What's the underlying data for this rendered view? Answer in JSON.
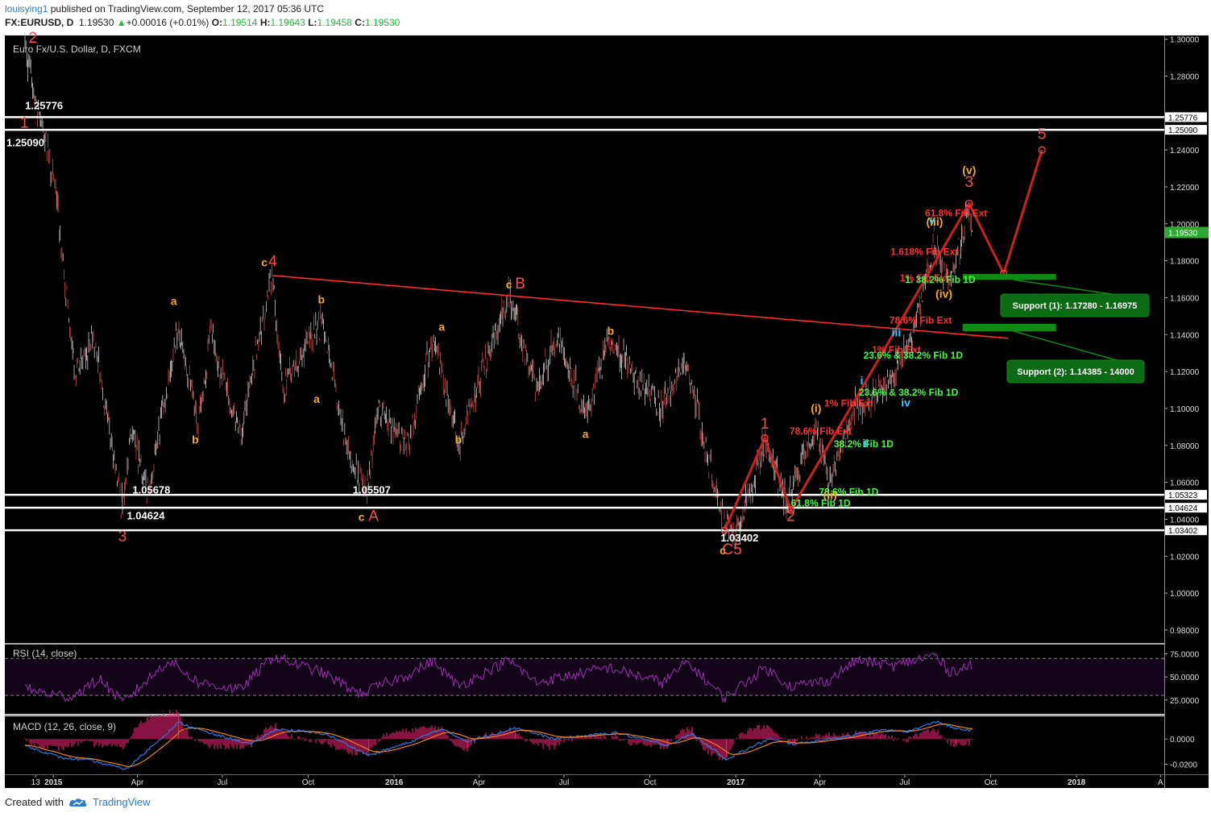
{
  "header": {
    "user": "louisying1",
    "published": "published on TradingView.com, September 12, 2017 05:36 UTC",
    "symbol": "FX:EURUSD, D",
    "last": "1.19530",
    "change": "+0.00016 (+0.01%)",
    "o_label": "O:",
    "o": "1.19514",
    "h_label": "H:",
    "h": "1.19643",
    "l_label": "L:",
    "l": "1.19458",
    "c_label": "C:",
    "c": "1.19530"
  },
  "footer": {
    "created": "Created with",
    "brand": "TradingView"
  },
  "colors": {
    "background": "#000000",
    "wave_red": "#ff4d4d",
    "wave_orange": "#f5a623",
    "fib_green": "#3dff3d",
    "cyan": "#33ccff",
    "rsi": "#9b30b0",
    "macd": "#2b7bdf",
    "signal": "#f08020"
  },
  "chart_data": {
    "type": "candlestick",
    "title": "Euro Fx/U.S. Dollar, D, FXCM",
    "x_ticks": [
      "13",
      "2015",
      "Apr",
      "Jul",
      "Oct",
      "2016",
      "Apr",
      "Jul",
      "Oct",
      "2017",
      "Apr",
      "Jul",
      "Oct",
      "2018",
      "A"
    ],
    "y_ticks": [
      "1.30000",
      "1.28000",
      "1.24000",
      "1.22000",
      "1.20000",
      "1.18000",
      "1.16000",
      "1.14000",
      "1.12000",
      "1.10000",
      "1.08000",
      "1.06000",
      "1.04000",
      "1.02000",
      "1.00000",
      "0.98000"
    ],
    "ylim": [
      0.973,
      1.302
    ],
    "last_price": "1.19530",
    "price_path": [
      {
        "t": "2014-12-01",
        "v": 1.3
      },
      {
        "t": "2014-12-12",
        "v": 1.268
      },
      {
        "t": "2014-12-18",
        "v": 1.258
      },
      {
        "t": "2015-01-05",
        "v": 1.212
      },
      {
        "t": "2015-01-23",
        "v": 1.12
      },
      {
        "t": "2015-02-15",
        "v": 1.135
      },
      {
        "t": "2015-03-16",
        "v": 1.046
      },
      {
        "t": "2015-03-25",
        "v": 1.09
      },
      {
        "t": "2015-04-13",
        "v": 1.056
      },
      {
        "t": "2015-05-15",
        "v": 1.145
      },
      {
        "t": "2015-06-05",
        "v": 1.09
      },
      {
        "t": "2015-06-18",
        "v": 1.14
      },
      {
        "t": "2015-07-20",
        "v": 1.085
      },
      {
        "t": "2015-08-24",
        "v": 1.172
      },
      {
        "t": "2015-09-03",
        "v": 1.11
      },
      {
        "t": "2015-10-15",
        "v": 1.148
      },
      {
        "t": "2015-11-15",
        "v": 1.07
      },
      {
        "t": "2015-12-03",
        "v": 1.055
      },
      {
        "t": "2015-12-15",
        "v": 1.1
      },
      {
        "t": "2016-01-15",
        "v": 1.08
      },
      {
        "t": "2016-02-11",
        "v": 1.138
      },
      {
        "t": "2016-03-10",
        "v": 1.082
      },
      {
        "t": "2016-05-03",
        "v": 1.162
      },
      {
        "t": "2016-06-01",
        "v": 1.11
      },
      {
        "t": "2016-06-24",
        "v": 1.14
      },
      {
        "t": "2016-07-25",
        "v": 1.095
      },
      {
        "t": "2016-08-18",
        "v": 1.136
      },
      {
        "t": "2016-10-15",
        "v": 1.1
      },
      {
        "t": "2016-11-08",
        "v": 1.127
      },
      {
        "t": "2016-12-20",
        "v": 1.036
      },
      {
        "t": "2017-01-03",
        "v": 1.034
      },
      {
        "t": "2017-02-01",
        "v": 1.082
      },
      {
        "t": "2017-02-24",
        "v": 1.05
      },
      {
        "t": "2017-03-27",
        "v": 1.09
      },
      {
        "t": "2017-04-10",
        "v": 1.06
      },
      {
        "t": "2017-05-10",
        "v": 1.1
      },
      {
        "t": "2017-06-15",
        "v": 1.115
      },
      {
        "t": "2017-07-10",
        "v": 1.14
      },
      {
        "t": "2017-08-02",
        "v": 1.19
      },
      {
        "t": "2017-08-17",
        "v": 1.165
      },
      {
        "t": "2017-09-08",
        "v": 1.209
      },
      {
        "t": "2017-09-12",
        "v": 1.195
      }
    ],
    "key_levels": [
      {
        "price": 1.25776,
        "label": "1.25776"
      },
      {
        "price": 1.2509,
        "label": "1.25090"
      },
      {
        "price": 1.05323,
        "label": "1.05323"
      },
      {
        "price": 1.04624,
        "label": "1.04624"
      },
      {
        "price": 1.03402,
        "label": "1.03402"
      }
    ],
    "trendline": [
      {
        "t": "2015-08-24",
        "v": 1.172
      },
      {
        "t": "2017-10-20",
        "v": 1.138
      }
    ],
    "projection": [
      {
        "t": "2016-12-20",
        "v": 1.034
      },
      {
        "t": "2017-02-01",
        "v": 1.084
      },
      {
        "t": "2017-03-01",
        "v": 1.045
      },
      {
        "t": "2017-09-08",
        "v": 1.211
      },
      {
        "t": "2017-10-15",
        "v": 1.173
      },
      {
        "t": "2017-11-25",
        "v": 1.24
      }
    ],
    "wave_labels": [
      {
        "t": "2014-12-10",
        "v": 1.298,
        "text": "2",
        "color": "red"
      },
      {
        "t": "2014-12-01",
        "v": 1.252,
        "text": "1",
        "color": "red"
      },
      {
        "t": "2015-03-16",
        "v": 1.028,
        "text": "3",
        "color": "red"
      },
      {
        "t": "2015-08-24",
        "v": 1.177,
        "text": "4",
        "color": "red"
      },
      {
        "t": "2015-08-15",
        "v": 1.177,
        "text": "c",
        "color": "orange"
      },
      {
        "t": "2015-12-10",
        "v": 1.039,
        "text": "A",
        "color": "red"
      },
      {
        "t": "2015-11-27",
        "v": 1.039,
        "text": "c",
        "color": "orange"
      },
      {
        "t": "2016-05-15",
        "v": 1.165,
        "text": "B",
        "color": "red"
      },
      {
        "t": "2016-05-03",
        "v": 1.165,
        "text": "c",
        "color": "orange"
      },
      {
        "t": "2016-12-28",
        "v": 1.021,
        "text": "C5",
        "color": "red"
      },
      {
        "t": "2016-12-18",
        "v": 1.021,
        "text": "c",
        "color": "orange"
      },
      {
        "t": "2017-02-01",
        "v": 1.089,
        "text": "1",
        "color": "red"
      },
      {
        "t": "2017-03-01",
        "v": 1.039,
        "text": "2",
        "color": "red"
      },
      {
        "t": "2017-09-08",
        "v": 1.22,
        "text": "3",
        "color": "red"
      },
      {
        "t": "2017-11-25",
        "v": 1.246,
        "text": "5",
        "color": "red"
      },
      {
        "t": "2015-05-10",
        "v": 1.156,
        "text": "a",
        "color": "orange"
      },
      {
        "t": "2015-06-02",
        "v": 1.081,
        "text": "b",
        "color": "orange"
      },
      {
        "t": "2015-10-15",
        "v": 1.157,
        "text": "b",
        "color": "orange"
      },
      {
        "t": "2015-10-10",
        "v": 1.103,
        "text": "a",
        "color": "orange"
      },
      {
        "t": "2016-02-21",
        "v": 1.142,
        "text": "a",
        "color": "orange"
      },
      {
        "t": "2016-03-10",
        "v": 1.081,
        "text": "b",
        "color": "orange"
      },
      {
        "t": "2016-08-20",
        "v": 1.14,
        "text": "b",
        "color": "orange"
      },
      {
        "t": "2016-07-24",
        "v": 1.084,
        "text": "a",
        "color": "orange"
      },
      {
        "t": "2017-03-28",
        "v": 1.098,
        "text": "(i)",
        "color": "orange"
      },
      {
        "t": "2017-04-12",
        "v": 1.051,
        "text": "(ii)",
        "color": "orange"
      },
      {
        "t": "2017-08-02",
        "v": 1.199,
        "text": "(iii)",
        "color": "orange"
      },
      {
        "t": "2017-08-12",
        "v": 1.16,
        "text": "(iv)",
        "color": "orange"
      },
      {
        "t": "2017-09-08",
        "v": 1.227,
        "text": "(v)",
        "color": "orange"
      },
      {
        "t": "2017-05-16",
        "v": 1.113,
        "text": "i",
        "color": "cyan"
      },
      {
        "t": "2017-05-20",
        "v": 1.079,
        "text": "ii",
        "color": "cyan"
      },
      {
        "t": "2017-06-22",
        "v": 1.139,
        "text": "iii",
        "color": "cyan"
      },
      {
        "t": "2017-07-02",
        "v": 1.101,
        "text": "iv",
        "color": "cyan"
      },
      {
        "t": "2017-07-30",
        "v": 1.2,
        "text": "v",
        "color": "cyan"
      }
    ],
    "price_labels": [
      {
        "t": "2014-12-22",
        "v": 1.262,
        "text": "1.25776"
      },
      {
        "t": "2014-12-02",
        "v": 1.242,
        "text": "1.25090"
      },
      {
        "t": "2015-04-16",
        "v": 1.054,
        "text": "1.05678"
      },
      {
        "t": "2015-04-10",
        "v": 1.04,
        "text": "1.04624"
      },
      {
        "t": "2015-12-08",
        "v": 1.054,
        "text": "1.05507"
      },
      {
        "t": "2017-01-05",
        "v": 1.028,
        "text": "1.03402"
      }
    ],
    "fib_annotations": [
      {
        "t": "2017-08-25",
        "v": 1.204,
        "text": "61.8% Fib Ext",
        "color": "red"
      },
      {
        "t": "2017-07-22",
        "v": 1.183,
        "text": "1.618% Fib Ext",
        "color": "red"
      },
      {
        "t": "2017-07-22",
        "v": 1.169,
        "text": "1% Fib Ext",
        "color": "red"
      },
      {
        "t": "2017-08-08",
        "v": 1.168,
        "text": "1. 38.2% Fib 1D",
        "color": "green"
      },
      {
        "t": "2017-07-18",
        "v": 1.146,
        "text": "78.6% Fib Ext",
        "color": "red"
      },
      {
        "t": "2017-06-22",
        "v": 1.13,
        "text": "1% Fib Ext",
        "color": "red"
      },
      {
        "t": "2017-07-10",
        "v": 1.127,
        "text": "23.6% & 38.2% Fib 1D",
        "color": "green"
      },
      {
        "t": "2017-07-05",
        "v": 1.107,
        "text": "23.6% & 38.2% Fib 1D",
        "color": "green"
      },
      {
        "t": "2017-05-02",
        "v": 1.101,
        "text": "1% Fib Ext",
        "color": "red"
      },
      {
        "t": "2017-04-02",
        "v": 1.086,
        "text": "78.6% Fib Ext",
        "color": "red"
      },
      {
        "t": "2017-05-18",
        "v": 1.079,
        "text": "38.2% Fib 1D",
        "color": "green"
      },
      {
        "t": "2017-05-02",
        "v": 1.053,
        "text": "78.6% Fib 1D",
        "color": "green"
      },
      {
        "t": "2017-04-02",
        "v": 1.047,
        "text": "61.8% Fib 1D",
        "color": "green"
      }
    ],
    "support_zones": [
      {
        "from": "2017-09-01",
        "to": "2017-12-10",
        "v_low": 1.1697,
        "v_high": 1.1728,
        "label": "Support (1): 1.17280 - 1.16975"
      },
      {
        "from": "2017-09-01",
        "to": "2017-12-10",
        "v_low": 1.1418,
        "v_high": 1.1458,
        "label": "Support (2): 1.14385 - 14000"
      }
    ],
    "rsi": {
      "title": "RSI (14, close)",
      "ticks": [
        "75.0000",
        "50.0000",
        "25.0000"
      ],
      "bands": [
        30,
        70
      ],
      "path": [
        {
          "t": "2014-12-01",
          "v": 38
        },
        {
          "t": "2014-12-20",
          "v": 33
        },
        {
          "t": "2015-01-20",
          "v": 28
        },
        {
          "t": "2015-02-20",
          "v": 48
        },
        {
          "t": "2015-03-16",
          "v": 22
        },
        {
          "t": "2015-05-05",
          "v": 68
        },
        {
          "t": "2015-06-05",
          "v": 44
        },
        {
          "t": "2015-07-20",
          "v": 36
        },
        {
          "t": "2015-08-24",
          "v": 72
        },
        {
          "t": "2015-10-15",
          "v": 55
        },
        {
          "t": "2015-11-25",
          "v": 32
        },
        {
          "t": "2016-01-15",
          "v": 52
        },
        {
          "t": "2016-02-11",
          "v": 67
        },
        {
          "t": "2016-03-10",
          "v": 40
        },
        {
          "t": "2016-05-03",
          "v": 68
        },
        {
          "t": "2016-06-01",
          "v": 44
        },
        {
          "t": "2016-08-18",
          "v": 60
        },
        {
          "t": "2016-10-15",
          "v": 44
        },
        {
          "t": "2016-11-10",
          "v": 66
        },
        {
          "t": "2016-12-20",
          "v": 27
        },
        {
          "t": "2017-02-01",
          "v": 60
        },
        {
          "t": "2017-03-01",
          "v": 40
        },
        {
          "t": "2017-04-10",
          "v": 46
        },
        {
          "t": "2017-05-10",
          "v": 68
        },
        {
          "t": "2017-06-20",
          "v": 62
        },
        {
          "t": "2017-08-02",
          "v": 74
        },
        {
          "t": "2017-08-17",
          "v": 56
        },
        {
          "t": "2017-09-12",
          "v": 62
        }
      ]
    },
    "macd": {
      "title": "MACD (12, 26, close, 9)",
      "ticks": [
        "0.0000",
        "-0.0200"
      ],
      "path": [
        {
          "t": "2014-12-01",
          "v": -0.005
        },
        {
          "t": "2015-01-10",
          "v": -0.015
        },
        {
          "t": "2015-02-10",
          "v": -0.017
        },
        {
          "t": "2015-03-20",
          "v": -0.024
        },
        {
          "t": "2015-05-15",
          "v": 0.013
        },
        {
          "t": "2015-06-20",
          "v": 0.004
        },
        {
          "t": "2015-08-01",
          "v": -0.004
        },
        {
          "t": "2015-08-28",
          "v": 0.008
        },
        {
          "t": "2015-10-20",
          "v": 0.004
        },
        {
          "t": "2015-12-05",
          "v": -0.013
        },
        {
          "t": "2016-01-20",
          "v": -0.002
        },
        {
          "t": "2016-02-20",
          "v": 0.008
        },
        {
          "t": "2016-03-20",
          "v": -0.002
        },
        {
          "t": "2016-05-10",
          "v": 0.009
        },
        {
          "t": "2016-06-20",
          "v": 0.0
        },
        {
          "t": "2016-08-25",
          "v": 0.005
        },
        {
          "t": "2016-10-20",
          "v": -0.005
        },
        {
          "t": "2016-11-15",
          "v": 0.004
        },
        {
          "t": "2016-12-22",
          "v": -0.016
        },
        {
          "t": "2017-02-05",
          "v": 0.0
        },
        {
          "t": "2017-03-05",
          "v": -0.004
        },
        {
          "t": "2017-04-20",
          "v": 0.001
        },
        {
          "t": "2017-06-05",
          "v": 0.007
        },
        {
          "t": "2017-07-05",
          "v": 0.006
        },
        {
          "t": "2017-08-05",
          "v": 0.014
        },
        {
          "t": "2017-08-25",
          "v": 0.008
        },
        {
          "t": "2017-09-12",
          "v": 0.007
        }
      ]
    }
  }
}
